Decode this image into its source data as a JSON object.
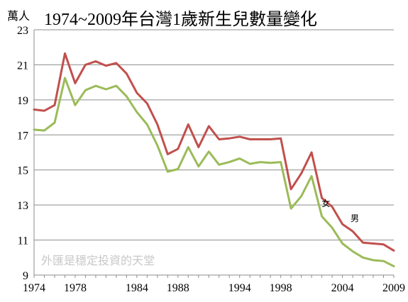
{
  "chart_data": {
    "type": "line",
    "title": "1974~2009年台灣1歲新生兒數量變化",
    "ylabel": "萬人",
    "xlabel": "",
    "ylim": [
      9,
      23
    ],
    "yticks": [
      9,
      11,
      13,
      15,
      17,
      19,
      21,
      23
    ],
    "xticks": [
      1974,
      1978,
      1984,
      1988,
      1994,
      1998,
      2004,
      2009
    ],
    "x": [
      1974,
      1975,
      1976,
      1977,
      1978,
      1979,
      1980,
      1981,
      1982,
      1983,
      1984,
      1985,
      1986,
      1987,
      1988,
      1989,
      1990,
      1991,
      1992,
      1993,
      1994,
      1995,
      1996,
      1997,
      1998,
      1999,
      2000,
      2001,
      2002,
      2003,
      2004,
      2005,
      2006,
      2007,
      2008,
      2009
    ],
    "series": [
      {
        "name": "男",
        "color": "#c0504d",
        "values": [
          18.45,
          18.38,
          18.7,
          21.65,
          19.95,
          21.0,
          21.2,
          20.95,
          21.1,
          20.5,
          19.4,
          18.8,
          17.6,
          15.9,
          16.2,
          17.6,
          16.3,
          17.5,
          16.75,
          16.8,
          16.9,
          16.75,
          16.75,
          16.75,
          16.8,
          13.9,
          14.8,
          16.0,
          13.4,
          12.9,
          11.9,
          11.5,
          10.85,
          10.8,
          10.75,
          10.4
        ]
      },
      {
        "name": "女",
        "color": "#9bbb59",
        "values": [
          17.3,
          17.25,
          17.7,
          20.25,
          18.7,
          19.55,
          19.8,
          19.6,
          19.8,
          19.2,
          18.3,
          17.6,
          16.4,
          14.9,
          15.05,
          16.3,
          15.2,
          16.05,
          15.3,
          15.45,
          15.65,
          15.35,
          15.45,
          15.4,
          15.45,
          12.8,
          13.5,
          14.65,
          12.35,
          11.7,
          10.8,
          10.35,
          10.0,
          9.85,
          9.8,
          9.5
        ]
      }
    ],
    "legend": "inline",
    "grid": "horizontal",
    "watermark": "外匯是穩定投資的天堂"
  }
}
